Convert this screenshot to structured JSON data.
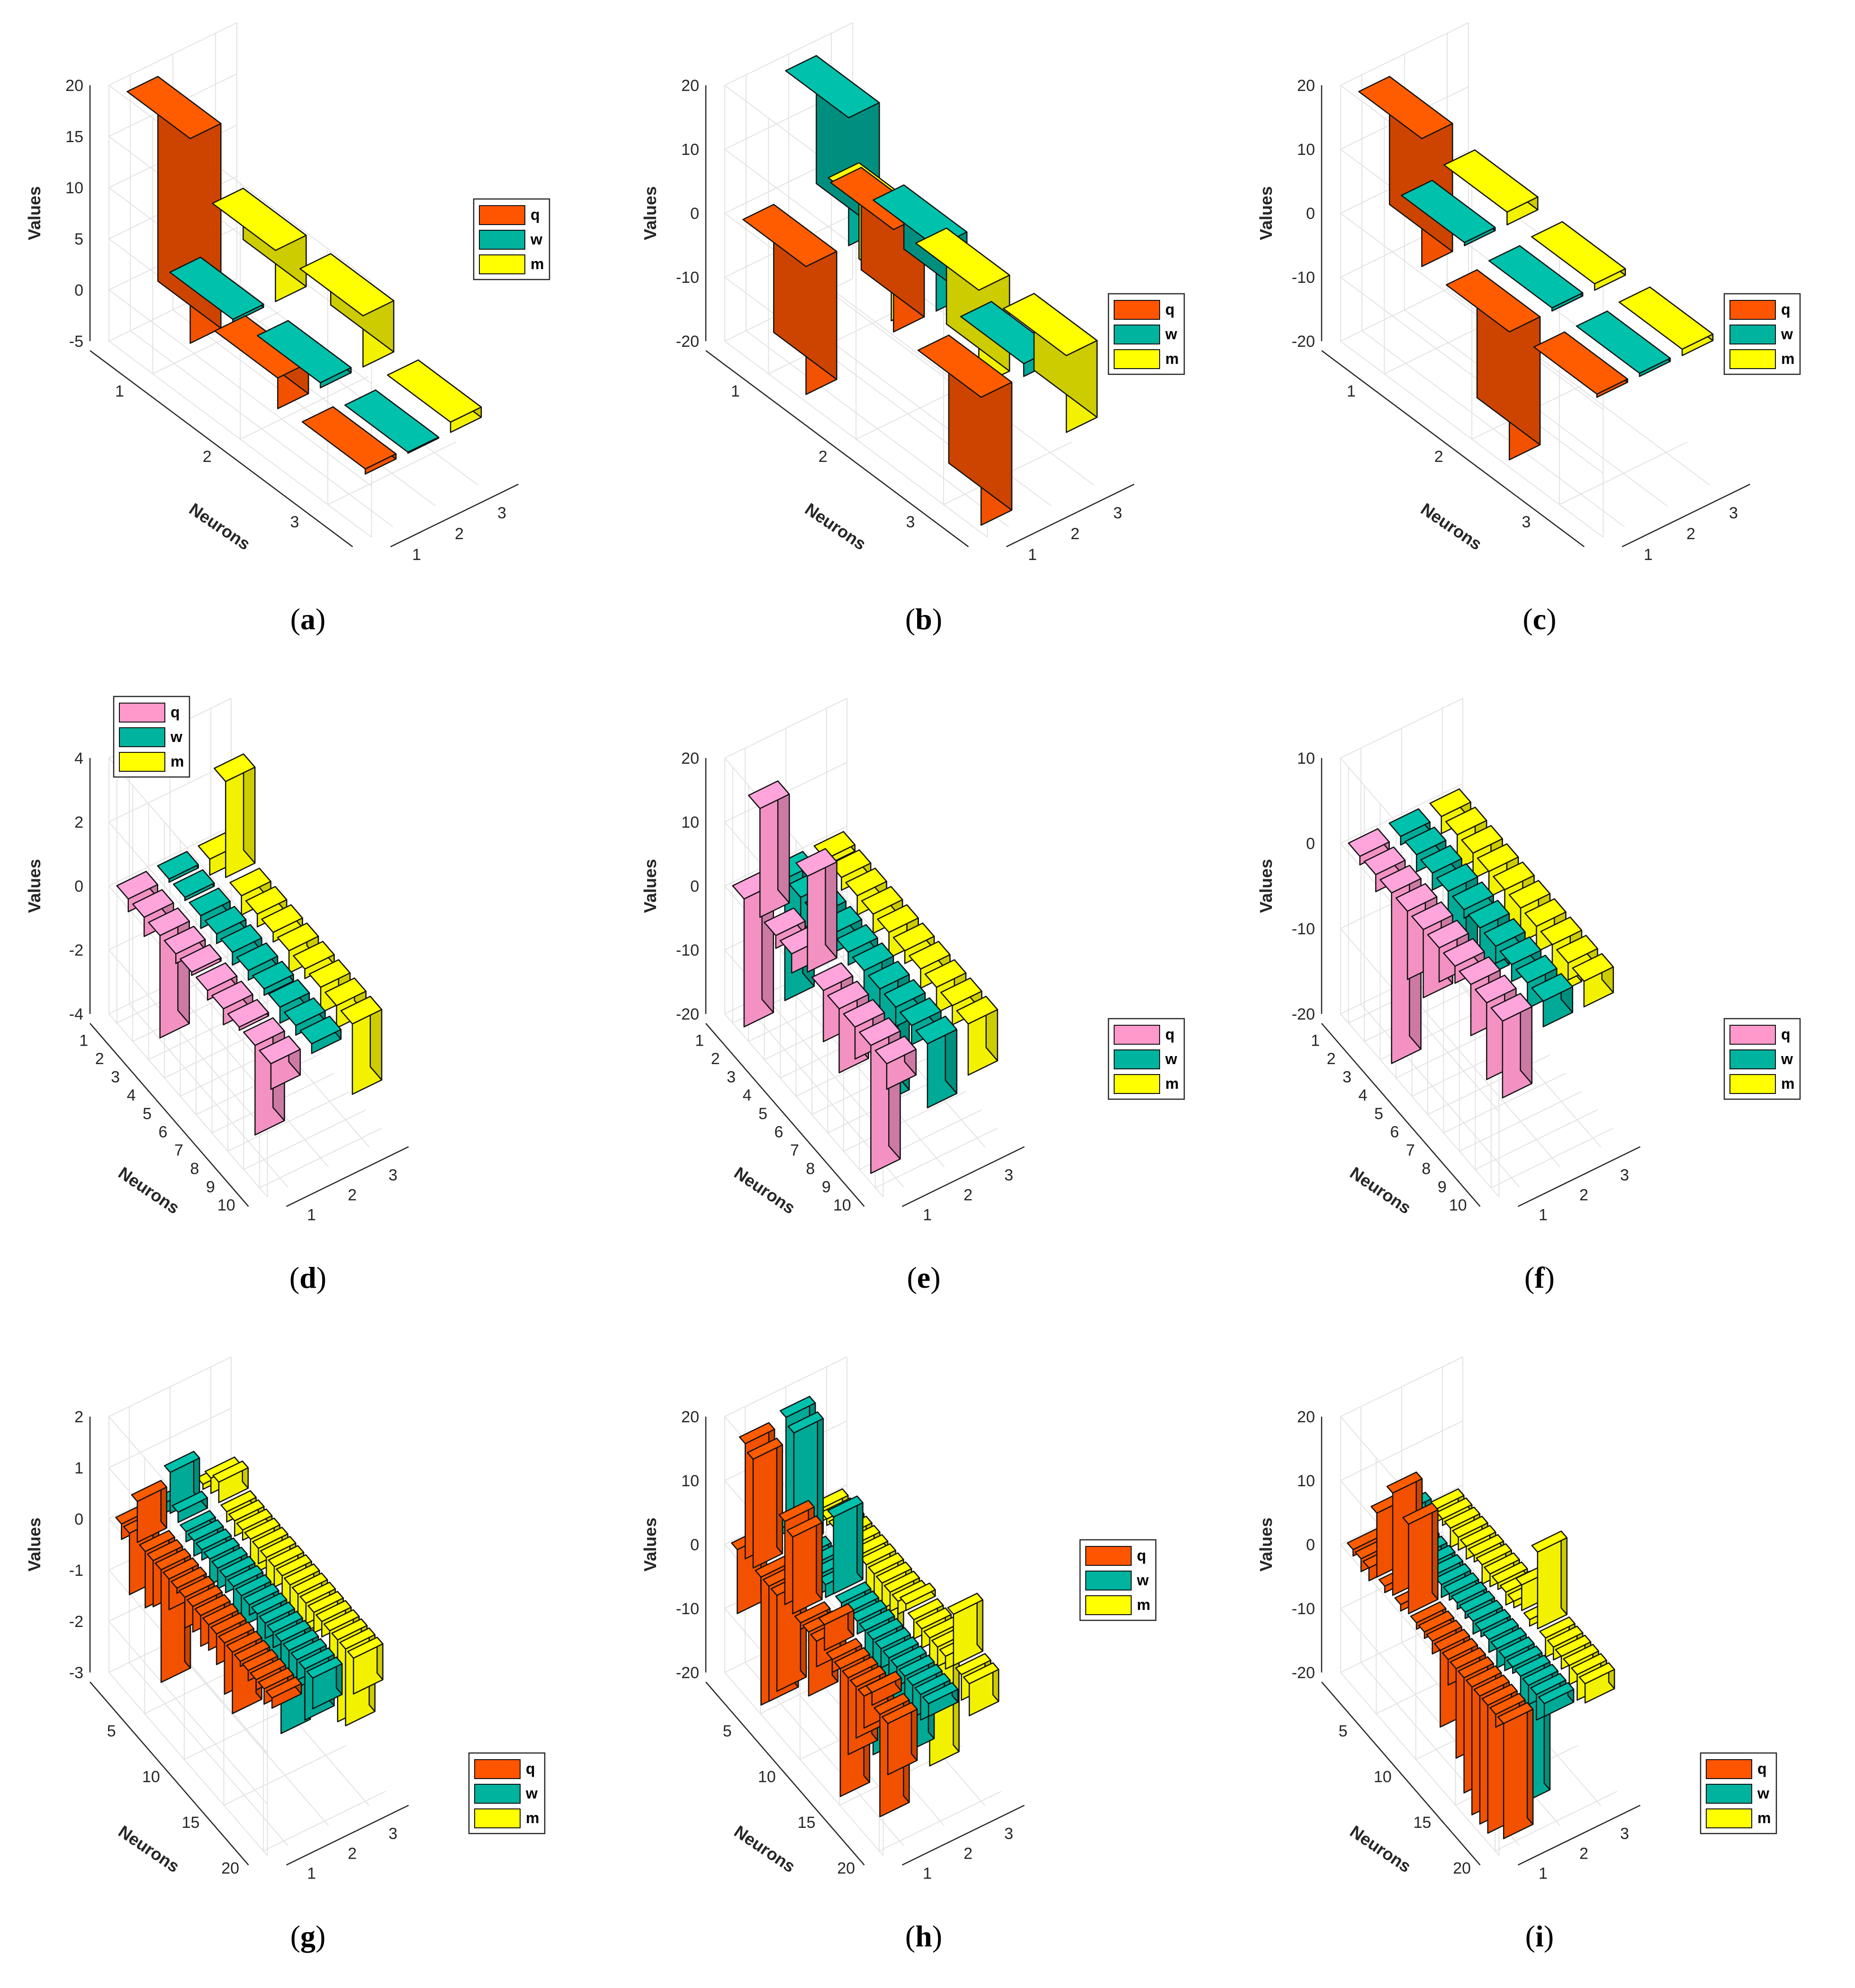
{
  "colors": {
    "q_orange": "#FF5500",
    "q_pink": "#FF99CC",
    "w": "#00B39E",
    "m": "#FFFF00"
  },
  "chart_data": [
    {
      "id": "a",
      "caption": "a",
      "type": "bar3",
      "ylabel": "Values",
      "xlabel": "Neurons",
      "zlim": [
        -5,
        20
      ],
      "zticks": [
        -5,
        0,
        5,
        10,
        15,
        20
      ],
      "neurons": 3,
      "neuron_ticks": [
        "1",
        "2",
        "3"
      ],
      "series_ticks": [
        "1",
        "2",
        "3"
      ],
      "legend": "right-middle",
      "series": [
        {
          "name": "q",
          "color": "q_orange",
          "values": [
            20,
            3,
            0.5
          ]
        },
        {
          "name": "w",
          "color": "w",
          "values": [
            0.3,
            0.5,
            0.1
          ]
        },
        {
          "name": "m",
          "color": "m",
          "values": [
            5,
            5,
            1
          ]
        }
      ]
    },
    {
      "id": "b",
      "caption": "b",
      "type": "bar3",
      "ylabel": "Values",
      "xlabel": "Neurons",
      "zlim": [
        -20,
        20
      ],
      "zticks": [
        -20,
        -10,
        0,
        10,
        20
      ],
      "neurons": 3,
      "neuron_ticks": [
        "1",
        "2",
        "3"
      ],
      "series_ticks": [
        "1",
        "2",
        "3"
      ],
      "legend": "bottom-right",
      "series": [
        {
          "name": "q",
          "color": "q_orange",
          "values": [
            -20,
            16,
            -20
          ]
        },
        {
          "name": "w",
          "color": "w",
          "values": [
            20,
            10,
            2
          ]
        },
        {
          "name": "m",
          "color": "m",
          "values": [
            -15,
            -15,
            -12
          ]
        }
      ]
    },
    {
      "id": "c",
      "caption": "c",
      "type": "bar3",
      "ylabel": "Values",
      "xlabel": "Neurons",
      "zlim": [
        -20,
        20
      ],
      "zticks": [
        -20,
        -10,
        0,
        10,
        20
      ],
      "neurons": 3,
      "neuron_ticks": [
        "1",
        "2",
        "3"
      ],
      "series_ticks": [
        "1",
        "2",
        "3"
      ],
      "legend": "bottom-right",
      "series": [
        {
          "name": "q",
          "color": "q_orange",
          "values": [
            20,
            -20,
            0.5
          ]
        },
        {
          "name": "w",
          "color": "w",
          "values": [
            0.5,
            0.5,
            0.5
          ]
        },
        {
          "name": "m",
          "color": "m",
          "values": [
            2,
            1,
            1
          ]
        }
      ]
    },
    {
      "id": "d",
      "caption": "d",
      "type": "bar3",
      "ylabel": "Values",
      "xlabel": "Neurons",
      "zlim": [
        -4,
        4
      ],
      "zticks": [
        -4,
        -2,
        0,
        2,
        4
      ],
      "neurons": 10,
      "neuron_ticks": [
        "1",
        "2",
        "3",
        "4",
        "5",
        "6",
        "7",
        "8",
        "9",
        "10"
      ],
      "series_ticks": [
        "1",
        "2",
        "3"
      ],
      "legend": "top-left",
      "series": [
        {
          "name": "q",
          "color": "q_pink",
          "values": [
            -0.4,
            -0.6,
            -3.2,
            -0.3,
            -0.1,
            -0.3,
            -0.5,
            -0.1,
            -2.8,
            -0.8
          ]
        },
        {
          "name": "w",
          "color": "w",
          "values": [
            -0.1,
            -0.1,
            -0.4,
            -0.3,
            -0.4,
            -0.3,
            -0.2,
            -0.5,
            -0.3,
            -0.3
          ]
        },
        {
          "name": "m",
          "color": "m",
          "values": [
            -0.5,
            3.0,
            -0.6,
            -0.4,
            -0.3,
            -0.7,
            -0.3,
            -0.8,
            -0.7,
            -2.2
          ]
        }
      ]
    },
    {
      "id": "e",
      "caption": "e",
      "type": "bar3",
      "ylabel": "Values",
      "xlabel": "Neurons",
      "zlim": [
        -20,
        20
      ],
      "zticks": [
        -20,
        -10,
        0,
        10,
        20
      ],
      "neurons": 10,
      "neuron_ticks": [
        "1",
        "2",
        "3",
        "4",
        "5",
        "6",
        "7",
        "8",
        "9",
        "10"
      ],
      "series_ticks": [
        "1",
        "2",
        "3"
      ],
      "legend": "bottom-right",
      "series": [
        {
          "name": "q",
          "color": "q_pink",
          "values": [
            -20,
            17,
            -2,
            -3,
            15,
            -8,
            -10,
            -5,
            -20,
            -4
          ]
        },
        {
          "name": "w",
          "color": "w",
          "values": [
            -19,
            -5,
            -4,
            -3,
            -2,
            -12,
            -18,
            -3,
            -3,
            -10
          ]
        },
        {
          "name": "m",
          "color": "m",
          "values": [
            -1,
            -2,
            -3,
            -3,
            -4,
            -2,
            -3,
            -4,
            -3,
            -8
          ]
        }
      ]
    },
    {
      "id": "f",
      "caption": "f",
      "type": "bar3",
      "ylabel": "Values",
      "xlabel": "Neurons",
      "zlim": [
        -20,
        10
      ],
      "zticks": [
        -20,
        -10,
        0,
        10
      ],
      "neurons": 10,
      "neuron_ticks": [
        "1",
        "2",
        "3",
        "4",
        "5",
        "6",
        "7",
        "8",
        "9",
        "10"
      ],
      "series_ticks": [
        "1",
        "2",
        "3"
      ],
      "legend": "bottom-right",
      "series": [
        {
          "name": "q",
          "color": "q_pink",
          "values": [
            -1,
            -2,
            -25,
            -8,
            -8,
            -4,
            -2,
            -6,
            -9,
            -9
          ]
        },
        {
          "name": "w",
          "color": "w",
          "values": [
            -1,
            -2,
            -2,
            -10,
            -1,
            -6,
            -2,
            -2,
            -3,
            -3
          ]
        },
        {
          "name": "m",
          "color": "m",
          "values": [
            -2,
            -4,
            -3,
            -3,
            -6,
            -4,
            -3,
            -6,
            -2,
            -3
          ]
        }
      ]
    },
    {
      "id": "g",
      "caption": "g",
      "type": "bar3",
      "ylabel": "Values",
      "xlabel": "Neurons",
      "zlim": [
        -3,
        2
      ],
      "zticks": [
        -3,
        -2,
        -1,
        0,
        1,
        2
      ],
      "neurons": 20,
      "neuron_ticks": [
        "5",
        "10",
        "15",
        "20"
      ],
      "neuron_tick_positions": [
        5,
        10,
        15,
        20
      ],
      "series_ticks": [
        "1",
        "2",
        "3"
      ],
      "legend": "bottom-right",
      "series": [
        {
          "name": "q",
          "color": "q_orange",
          "values": [
            -0.3,
            -1.2,
            0.8,
            -1.1,
            -0.9,
            -2.2,
            -0.6,
            -0.1,
            -0.6,
            -0.5,
            -0.6,
            -0.5,
            -0.6,
            -1.0,
            -1.2,
            -0.1,
            -0.2,
            -0.2,
            -0.3,
            -0.2
          ]
        },
        {
          "name": "w",
          "color": "w",
          "values": [
            -0.2,
            0.8,
            0.2,
            -0.2,
            -0.3,
            -0.2,
            -0.5,
            -0.4,
            -0.3,
            -0.8,
            -0.6,
            -0.2,
            -1.2,
            -0.3,
            -0.3,
            -1.8,
            -0.8,
            -0.4,
            -1.0,
            -0.6
          ]
        },
        {
          "name": "m",
          "color": "m",
          "values": [
            -0.1,
            0.3,
            0.4,
            -0.2,
            -0.3,
            -0.2,
            -0.7,
            -0.3,
            -0.6,
            -0.4,
            -0.7,
            -0.6,
            -0.8,
            -0.4,
            -0.4,
            -0.3,
            -0.6,
            -1.6,
            -1.5,
            -0.7
          ]
        }
      ]
    },
    {
      "id": "h",
      "caption": "h",
      "type": "bar3",
      "ylabel": "Values",
      "xlabel": "Neurons",
      "zlim": [
        -20,
        20
      ],
      "zticks": [
        -20,
        -10,
        0,
        10,
        20
      ],
      "neurons": 20,
      "neuron_ticks": [
        "5",
        "10",
        "15",
        "20"
      ],
      "neuron_tick_positions": [
        5,
        10,
        15,
        20
      ],
      "series_ticks": [
        "1",
        "2",
        "3"
      ],
      "legend": "right-middle",
      "series": [
        {
          "name": "q",
          "color": "q_orange",
          "values": [
            -10,
            18,
            17,
            -20,
            -18,
            -15,
            13,
            12,
            -1,
            -10,
            -4,
            4,
            -2,
            -26,
            -12,
            -8,
            -5,
            2,
            -16,
            -8
          ]
        },
        {
          "name": "w",
          "color": "w",
          "values": [
            -1,
            19,
            18,
            -1,
            -1,
            -3,
            -2,
            12,
            -2,
            -1,
            -2,
            -6,
            -18,
            -3,
            -10,
            -3,
            -12,
            -5,
            -4,
            -2
          ]
        },
        {
          "name": "m",
          "color": "m",
          "values": [
            -2,
            -1,
            -2,
            -3,
            -2,
            -1,
            -5,
            -20,
            -4,
            -3,
            -2,
            1,
            -3,
            -3,
            -22,
            -3,
            -2,
            8,
            -4,
            -5
          ]
        }
      ]
    },
    {
      "id": "i",
      "caption": "i",
      "type": "bar3",
      "ylabel": "Values",
      "xlabel": "Neurons",
      "zlim": [
        -20,
        20
      ],
      "zticks": [
        -20,
        -10,
        0,
        10,
        20
      ],
      "neurons": 20,
      "neuron_ticks": [
        "5",
        "10",
        "15",
        "20"
      ],
      "neuron_tick_positions": [
        5,
        10,
        15,
        20
      ],
      "series_ticks": [
        "1",
        "2",
        "3"
      ],
      "legend": "bottom-right",
      "series": [
        {
          "name": "q",
          "color": "q_orange",
          "values": [
            -1,
            -2,
            -2,
            10,
            -1,
            16,
            -1,
            14,
            -1,
            -1,
            -2,
            -12,
            -4,
            -14,
            -18,
            -20,
            -22,
            -24,
            -2,
            -18
          ]
        },
        {
          "name": "w",
          "color": "w",
          "values": [
            -1,
            4,
            -2,
            -2,
            -1,
            -1,
            -2,
            -1,
            -1,
            -1,
            -2,
            -1,
            -2,
            -3,
            -2,
            -1,
            -28,
            -3,
            -4,
            -2
          ]
        },
        {
          "name": "m",
          "color": "m",
          "values": [
            -2,
            -1,
            -3,
            -2,
            -2,
            -1,
            -3,
            -2,
            -1,
            -2,
            -1,
            4,
            -1,
            12,
            -3,
            -2,
            -2,
            -3,
            -4,
            -3
          ]
        }
      ]
    }
  ]
}
